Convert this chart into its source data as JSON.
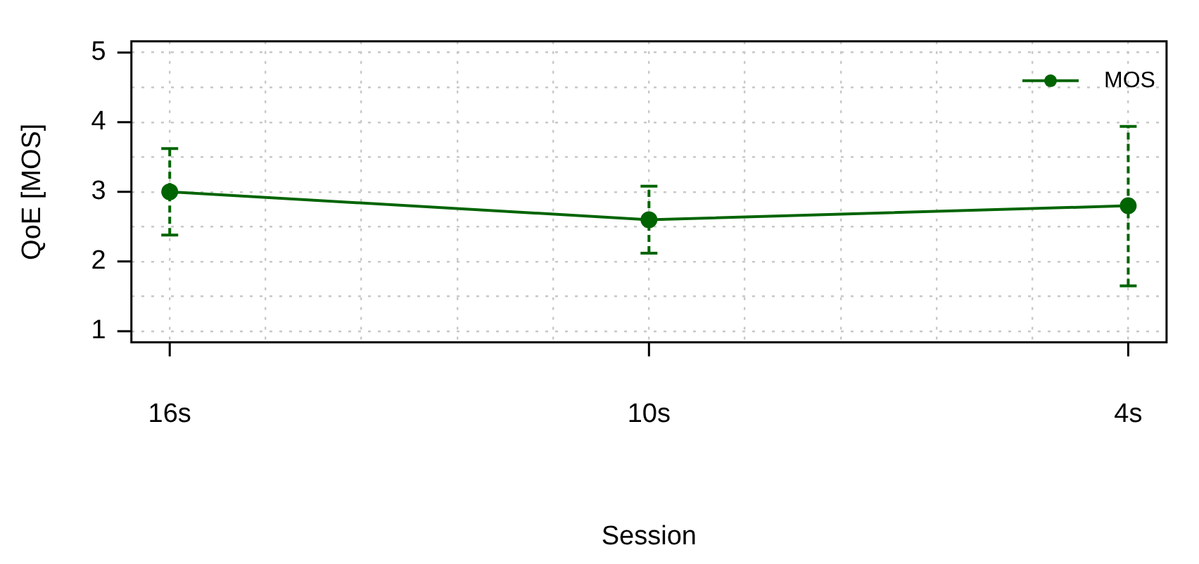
{
  "chart_data": {
    "type": "line",
    "xlabel": "Session",
    "ylabel": "QoE [MOS]",
    "x": [
      16,
      10,
      4
    ],
    "series": [
      {
        "name": "MOS",
        "color": "#006400",
        "values": [
          3.0,
          2.6,
          2.8
        ],
        "errors": [
          [
            2.38,
            3.62
          ],
          [
            2.12,
            3.08
          ],
          [
            1.65,
            3.94
          ]
        ]
      }
    ],
    "xlim": [
      16.48,
      3.52
    ],
    "xticks": [
      {
        "value": 16,
        "label": "16s"
      },
      {
        "value": 14.8,
        "label": null
      },
      {
        "value": 13.6,
        "label": null
      },
      {
        "value": 12.4,
        "label": null
      },
      {
        "value": 11.2,
        "label": null
      },
      {
        "value": 10,
        "label": "10s"
      },
      {
        "value": 8.8,
        "label": null
      },
      {
        "value": 7.6,
        "label": null
      },
      {
        "value": 6.4,
        "label": null
      },
      {
        "value": 5.2,
        "label": null
      },
      {
        "value": 4,
        "label": "4s"
      }
    ],
    "ylim": [
      0.84,
      5.16
    ],
    "yticks": [
      1,
      {
        "value": 1.5,
        "label": null
      },
      2,
      {
        "value": 2.5,
        "label": null
      },
      3,
      {
        "value": 3.5,
        "label": null
      },
      4,
      {
        "value": 4.5,
        "label": null
      },
      5
    ],
    "grid": true,
    "legend": "top right",
    "marker": "circle",
    "line_style": "solid"
  }
}
